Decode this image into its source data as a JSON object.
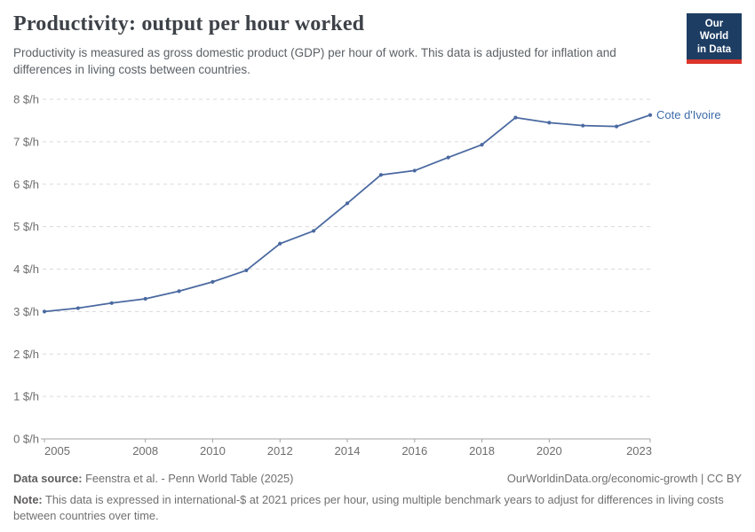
{
  "header": {
    "title": "Productivity: output per hour worked",
    "subtitle": "Productivity is measured as gross domestic product (GDP) per hour of work. This data is adjusted for inflation and differences in living costs between countries.",
    "logo": {
      "line1": "Our World",
      "line2": "in Data",
      "bg_color": "#1d3d63",
      "stripe_color": "#dc352b"
    }
  },
  "chart_data": {
    "type": "line",
    "title": "Productivity: output per hour worked",
    "x": [
      2005,
      2006,
      2007,
      2008,
      2009,
      2010,
      2011,
      2012,
      2013,
      2014,
      2015,
      2016,
      2017,
      2018,
      2019,
      2020,
      2021,
      2022,
      2023
    ],
    "series": [
      {
        "name": "Cote d'Ivoire",
        "values": [
          3.0,
          3.08,
          3.2,
          3.3,
          3.48,
          3.7,
          3.97,
          4.6,
          4.9,
          5.55,
          6.22,
          6.32,
          6.63,
          6.93,
          7.57,
          7.45,
          7.38,
          7.36,
          7.63
        ],
        "color": "#4a69a0",
        "label_color": "#3d6ba8"
      }
    ],
    "xlabel": "",
    "ylabel": "",
    "ylim": [
      0,
      8
    ],
    "xlim": [
      2005,
      2023
    ],
    "yticks": [
      0,
      1,
      2,
      3,
      4,
      5,
      6,
      7,
      8
    ],
    "ytick_suffix": " $/h",
    "xticks": [
      2005,
      2008,
      2010,
      2012,
      2014,
      2016,
      2018,
      2020,
      2023
    ],
    "grid": "horizontal-dashed",
    "grid_color": "#dadada",
    "axis_color": "#a3a3a3",
    "tick_label_color": "#6e6e6e",
    "legend_position": "end-of-line"
  },
  "footer": {
    "datasource_label": "Data source:",
    "datasource": " Feenstra et al. - Penn World Table (2025)",
    "attribution": "OurWorldinData.org/economic-growth | CC BY",
    "note_label": "Note:",
    "note": " This data is expressed in international-$ at 2021 prices per hour, using multiple benchmark years to adjust for differences in living costs between countries over time."
  }
}
